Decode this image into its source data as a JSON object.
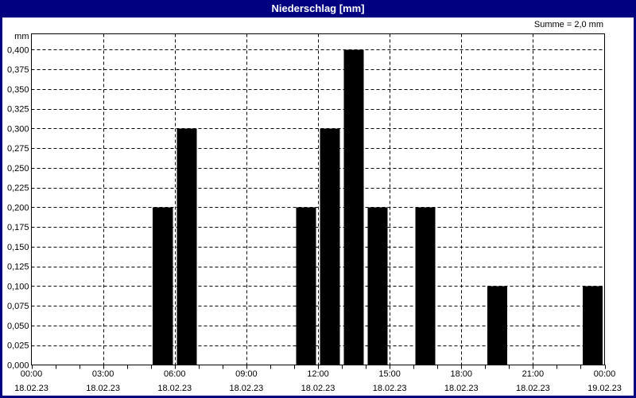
{
  "window": {
    "title": "Niederschlag [mm]"
  },
  "summary_label": "Summe = 2,0 mm",
  "colors": {
    "titlebar_bg": "#000080",
    "titlebar_text": "#ffffff",
    "window_border": "#000080",
    "content_bg": "#ffffff",
    "bar_fill": "#000000",
    "grid_line": "#000000",
    "axis_line": "#000000",
    "text": "#000000"
  },
  "chart_data": {
    "type": "bar",
    "title": "Niederschlag [mm]",
    "ylabel": "mm",
    "xlabel": "",
    "grid": "dashed",
    "legend": "none",
    "sum_annotation": "Summe = 2,0 mm",
    "sum_value_mm": 2.0,
    "y_axis": {
      "unit_label": "mm",
      "min": 0,
      "max": 0.4,
      "headroom_top": 0.02,
      "tick_step": 0.025,
      "tick_labels": [
        "0,000",
        "0,025",
        "0,050",
        "0,075",
        "0,100",
        "0,125",
        "0,150",
        "0,175",
        "0,200",
        "0,225",
        "0,250",
        "0,275",
        "0,300",
        "0,325",
        "0,350",
        "0,375",
        "0,400"
      ]
    },
    "x_axis": {
      "start_hour": 0,
      "end_hour": 24,
      "minor_tick_every_hours": 1,
      "major_tick_every_hours": 3,
      "major_ticks": [
        {
          "hour": 0,
          "time": "00:00",
          "date": "18.02.23"
        },
        {
          "hour": 3,
          "time": "03:00",
          "date": "18.02.23"
        },
        {
          "hour": 6,
          "time": "06:00",
          "date": "18.02.23"
        },
        {
          "hour": 9,
          "time": "09:00",
          "date": "18.02.23"
        },
        {
          "hour": 12,
          "time": "12:00",
          "date": "18.02.23"
        },
        {
          "hour": 15,
          "time": "15:00",
          "date": "18.02.23"
        },
        {
          "hour": 18,
          "time": "18:00",
          "date": "18.02.23"
        },
        {
          "hour": 21,
          "time": "21:00",
          "date": "18.02.23"
        },
        {
          "hour": 24,
          "time": "00:00",
          "date": "19.02.23"
        }
      ]
    },
    "series": [
      {
        "name": "Niederschlag",
        "unit": "mm",
        "bar_interval_hours": 1,
        "points": [
          {
            "start_hour": 5,
            "value": 0.2
          },
          {
            "start_hour": 6,
            "value": 0.3
          },
          {
            "start_hour": 11,
            "value": 0.2
          },
          {
            "start_hour": 12,
            "value": 0.3
          },
          {
            "start_hour": 13,
            "value": 0.4
          },
          {
            "start_hour": 14,
            "value": 0.2
          },
          {
            "start_hour": 16,
            "value": 0.2
          },
          {
            "start_hour": 19,
            "value": 0.1
          },
          {
            "start_hour": 23,
            "value": 0.1
          }
        ]
      }
    ]
  }
}
